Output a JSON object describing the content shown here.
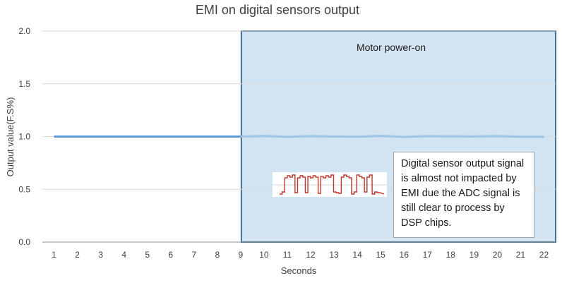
{
  "chart_data": {
    "type": "line",
    "title": "EMI on digital sensors output",
    "xlabel": "Seconds",
    "ylabel": "Output value(F.S%)",
    "categories": [
      "1",
      "2",
      "3",
      "4",
      "5",
      "6",
      "7",
      "8",
      "9",
      "10",
      "11",
      "12",
      "13",
      "14",
      "15",
      "16",
      "17",
      "18",
      "19",
      "20",
      "21",
      "22"
    ],
    "yticks": [
      "0.0",
      "0.5",
      "1.0",
      "1.5",
      "2.0"
    ],
    "ylim": [
      0,
      2
    ],
    "grid": true,
    "series": [
      {
        "values": [
          1.0,
          1.0,
          1.0,
          1.0,
          1.0,
          1.0,
          1.0,
          1.0,
          1.0,
          1.005,
          0.997,
          1.004,
          1.0,
          0.998,
          1.006,
          0.997,
          1.003,
          1.002,
          1.001,
          1.004,
          0.998,
          0.998
        ],
        "color": "#5b9bd5",
        "highlight_from": "9"
      }
    ],
    "shaded_region": {
      "x_start": "9",
      "x_end": "22",
      "label": "Motor power-on",
      "fill": "#d2e3f2",
      "border": "#41719c"
    },
    "annotation": {
      "text": "Digital sensor output signal is almost not impacted by EMI due the ADC signal is still clear to process by DSP chips."
    },
    "inset_signal": {
      "description_color": "#c0392b"
    }
  }
}
